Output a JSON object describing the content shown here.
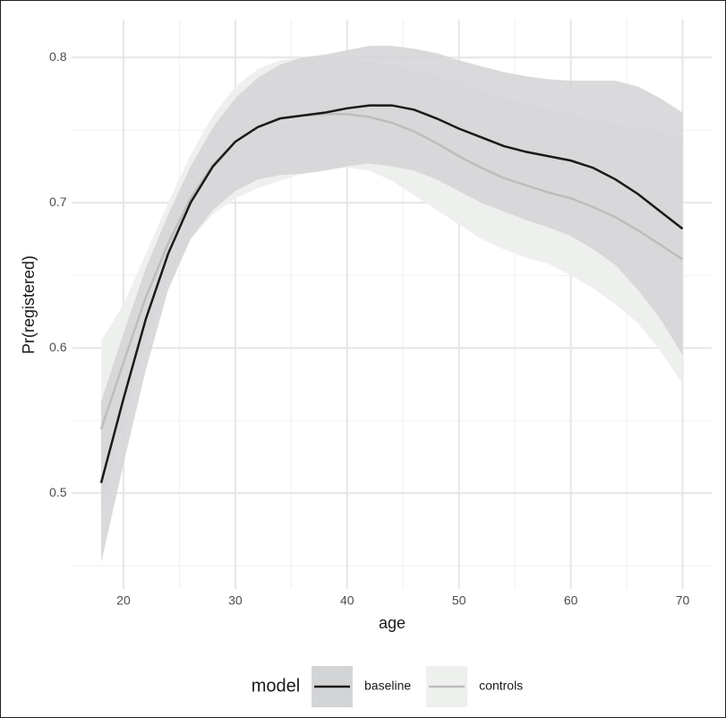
{
  "chart_data": {
    "type": "line",
    "x_label": "age",
    "y_label": "Pr(registered)",
    "legend_title": "model",
    "legend_position": "bottom",
    "grid": true,
    "x": [
      18,
      20,
      22,
      24,
      26,
      28,
      30,
      32,
      34,
      36,
      38,
      40,
      42,
      44,
      46,
      48,
      50,
      52,
      54,
      56,
      58,
      60,
      62,
      64,
      66,
      68,
      70
    ],
    "xlim": [
      15.4,
      72.6
    ],
    "xticks": [
      20,
      30,
      40,
      50,
      60,
      70
    ],
    "minor_xticks": [
      25,
      35,
      45,
      55,
      65
    ],
    "ylim": [
      0.434,
      0.826
    ],
    "yticks": [
      0.5,
      0.6,
      0.7,
      0.8
    ],
    "minor_yticks": [
      0.45,
      0.55,
      0.65,
      0.75
    ],
    "series": [
      {
        "name": "baseline",
        "color": "#1a1a1a",
        "fill": "#d3d4d6",
        "values": [
          0.507,
          0.565,
          0.62,
          0.665,
          0.7,
          0.725,
          0.742,
          0.752,
          0.758,
          0.76,
          0.762,
          0.765,
          0.767,
          0.767,
          0.764,
          0.758,
          0.751,
          0.745,
          0.739,
          0.735,
          0.732,
          0.729,
          0.724,
          0.716,
          0.706,
          0.694,
          0.682
        ],
        "lower": [
          0.452,
          0.52,
          0.585,
          0.64,
          0.675,
          0.695,
          0.708,
          0.716,
          0.719,
          0.72,
          0.722,
          0.725,
          0.727,
          0.725,
          0.722,
          0.716,
          0.708,
          0.7,
          0.694,
          0.688,
          0.683,
          0.677,
          0.668,
          0.657,
          0.64,
          0.62,
          0.595
        ],
        "upper": [
          0.563,
          0.61,
          0.655,
          0.692,
          0.725,
          0.752,
          0.772,
          0.786,
          0.795,
          0.8,
          0.802,
          0.805,
          0.808,
          0.808,
          0.806,
          0.803,
          0.798,
          0.794,
          0.79,
          0.787,
          0.785,
          0.784,
          0.784,
          0.784,
          0.78,
          0.772,
          0.762
        ]
      },
      {
        "name": "controls",
        "color": "#bdbdbd",
        "fill": "#eef0ee",
        "values": [
          0.544,
          0.59,
          0.635,
          0.672,
          0.703,
          0.726,
          0.742,
          0.752,
          0.758,
          0.76,
          0.761,
          0.761,
          0.759,
          0.755,
          0.749,
          0.741,
          0.732,
          0.724,
          0.717,
          0.712,
          0.707,
          0.703,
          0.697,
          0.69,
          0.681,
          0.671,
          0.661
        ],
        "lower": [
          0.485,
          0.55,
          0.605,
          0.645,
          0.675,
          0.692,
          0.703,
          0.71,
          0.715,
          0.72,
          0.723,
          0.724,
          0.722,
          0.715,
          0.705,
          0.695,
          0.685,
          0.675,
          0.668,
          0.662,
          0.658,
          0.65,
          0.641,
          0.63,
          0.617,
          0.598,
          0.575
        ],
        "upper": [
          0.605,
          0.63,
          0.665,
          0.7,
          0.733,
          0.76,
          0.78,
          0.792,
          0.798,
          0.8,
          0.8,
          0.799,
          0.797,
          0.795,
          0.791,
          0.787,
          0.782,
          0.777,
          0.772,
          0.768,
          0.764,
          0.76,
          0.757,
          0.754,
          0.752,
          0.749,
          0.745
        ]
      }
    ]
  }
}
